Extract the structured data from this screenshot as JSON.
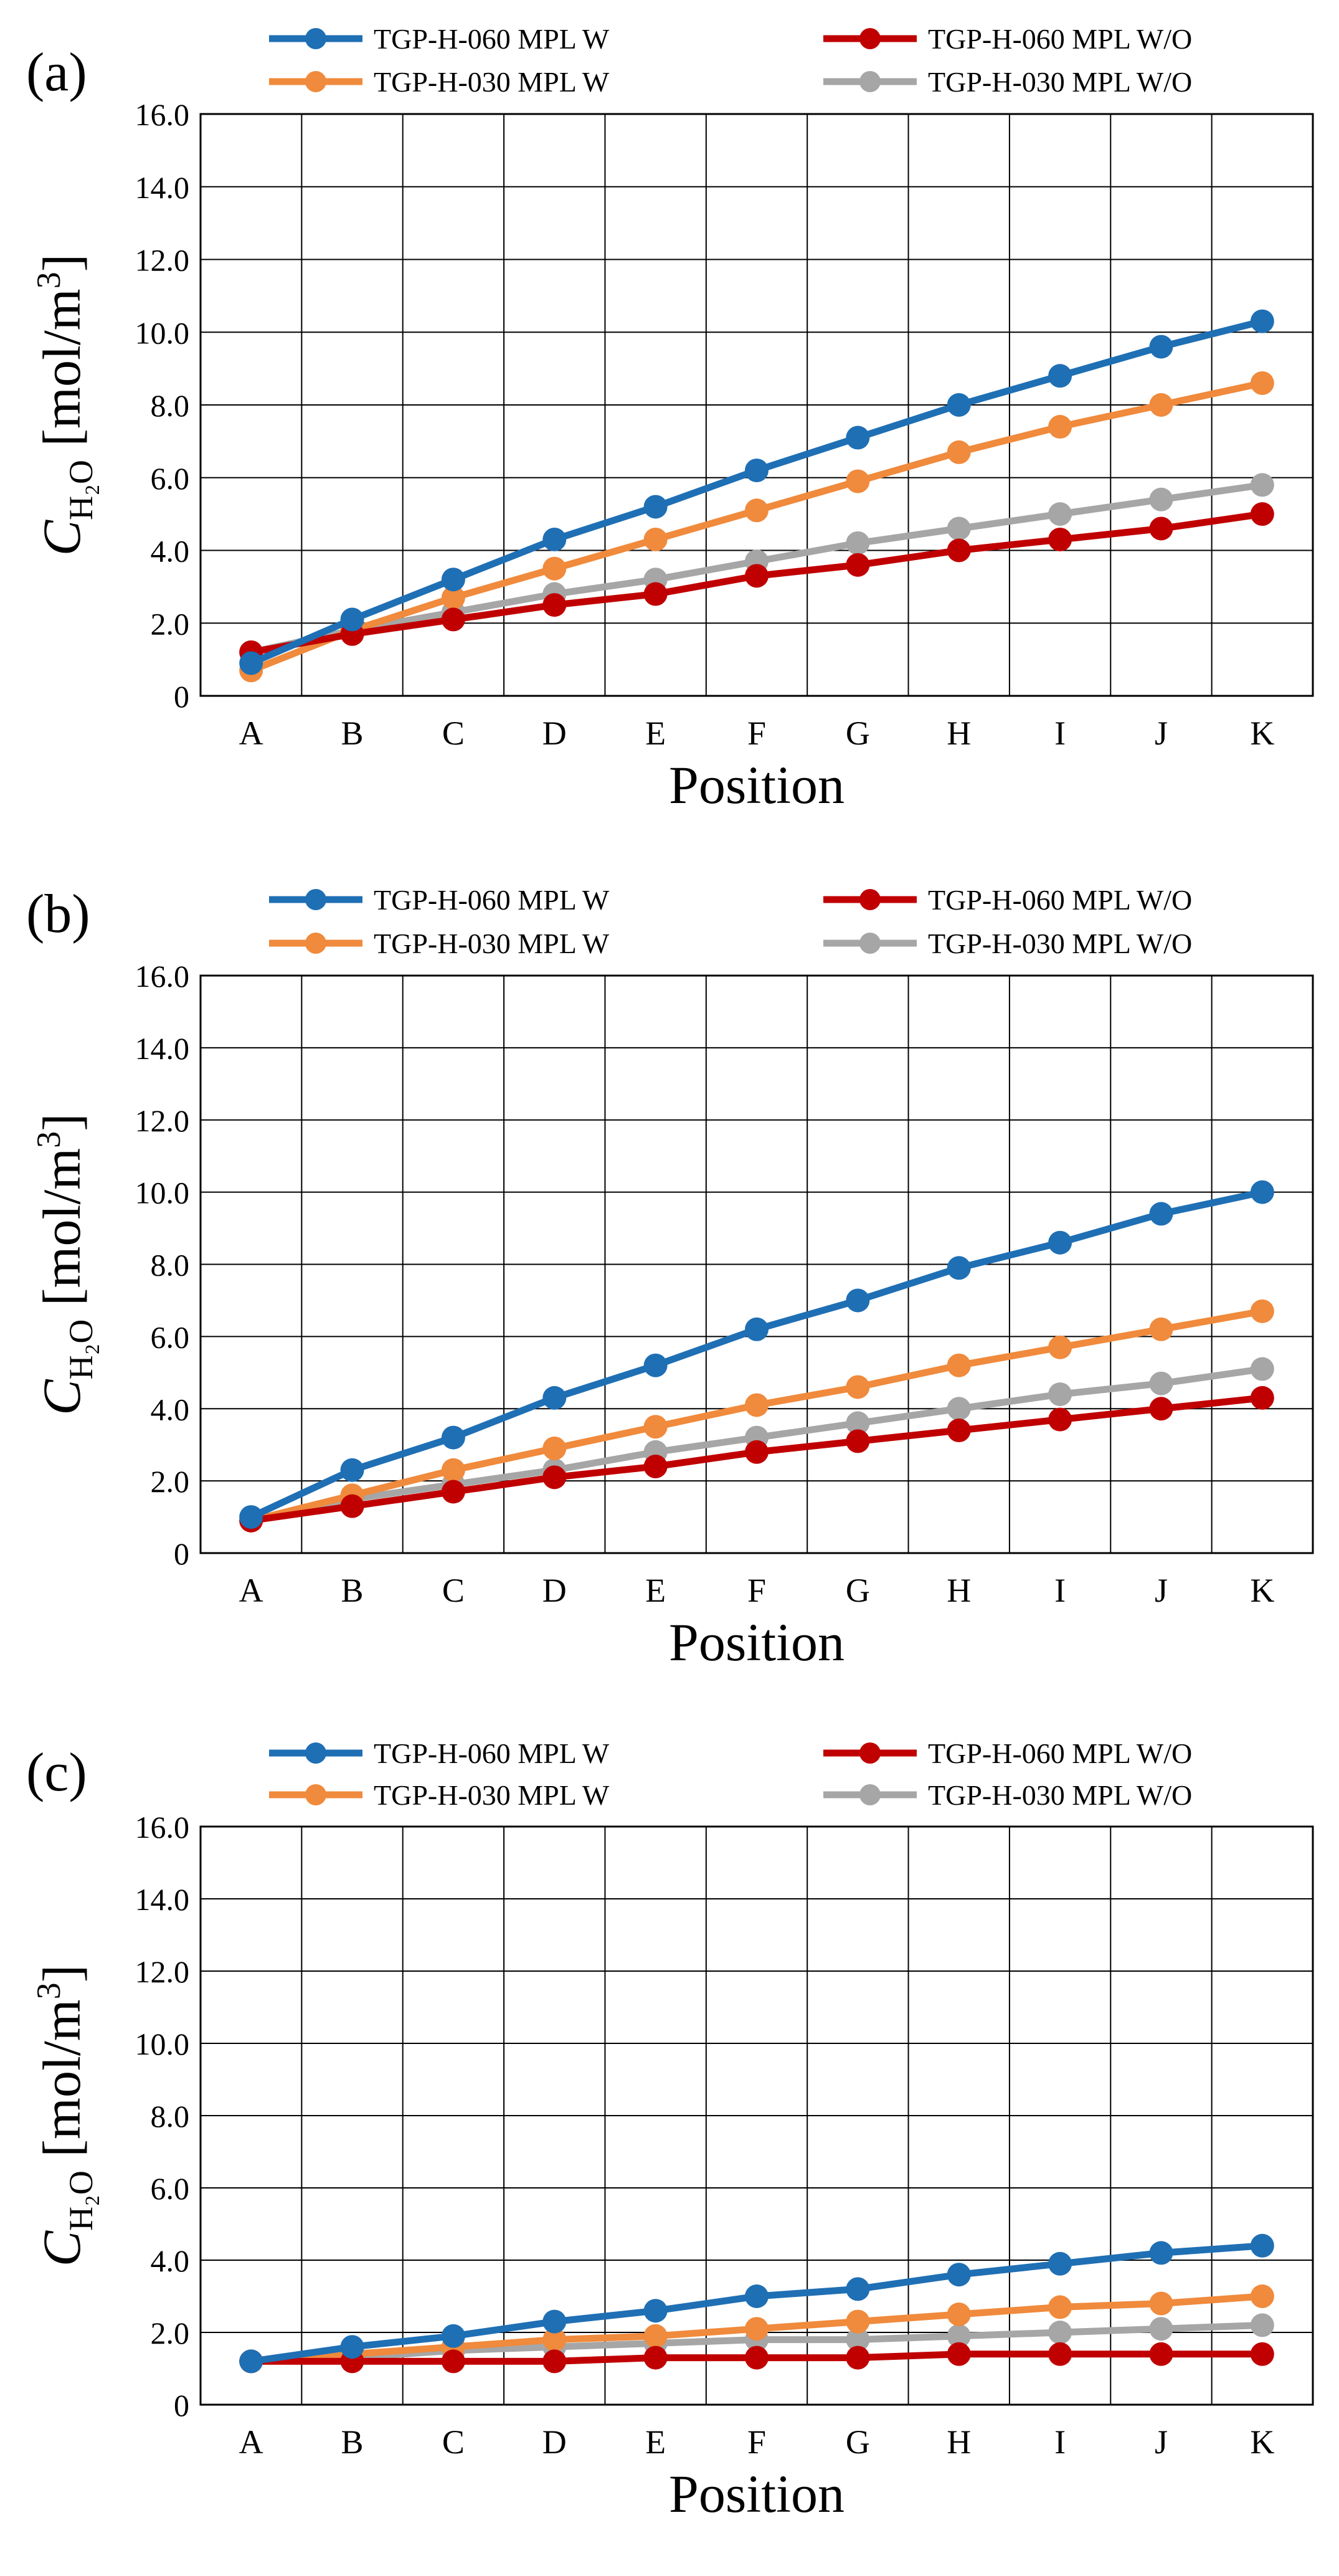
{
  "figure": {
    "position_label": "Position",
    "y_label_prefix": "C",
    "y_label_sub": "H₂O",
    "y_label_unit": " [mol/m",
    "y_label_unit_sup": "3",
    "y_label_unit_close": "]"
  },
  "chart_data": [
    {
      "type": "line",
      "panel_label": "(a)",
      "xlabel": "Position",
      "ylabel": "C_H2O [mol/m3]",
      "categories": [
        "A",
        "B",
        "C",
        "D",
        "E",
        "F",
        "G",
        "H",
        "I",
        "J",
        "K"
      ],
      "ylim": [
        0,
        16
      ],
      "yticks": [
        "0",
        "2.0",
        "4.0",
        "6.0",
        "8.0",
        "10.0",
        "12.0",
        "14.0",
        "16.0"
      ],
      "grid": true,
      "legend_position": "top",
      "series": [
        {
          "name": "TGP-H-060 MPL W",
          "color": "#1F6FB4",
          "values": [
            0.9,
            2.1,
            3.2,
            4.3,
            5.2,
            6.2,
            7.1,
            8.0,
            8.8,
            9.6,
            10.3
          ]
        },
        {
          "name": "TGP-H-060 MPL W/O",
          "color": "#C00000",
          "values": [
            1.2,
            1.7,
            2.1,
            2.5,
            2.8,
            3.3,
            3.6,
            4.0,
            4.3,
            4.6,
            5.0
          ]
        },
        {
          "name": "TGP-H-030 MPL W",
          "color": "#F08A3C",
          "values": [
            0.7,
            1.8,
            2.7,
            3.5,
            4.3,
            5.1,
            5.9,
            6.7,
            7.4,
            8.0,
            8.6
          ]
        },
        {
          "name": "TGP-H-030 MPL W/O",
          "color": "#A6A6A6",
          "values": [
            1.2,
            1.8,
            2.3,
            2.8,
            3.2,
            3.7,
            4.2,
            4.6,
            5.0,
            5.4,
            5.8
          ]
        }
      ]
    },
    {
      "type": "line",
      "panel_label": "(b)",
      "xlabel": "Position",
      "ylabel": "C_H2O [mol/m3]",
      "categories": [
        "A",
        "B",
        "C",
        "D",
        "E",
        "F",
        "G",
        "H",
        "I",
        "J",
        "K"
      ],
      "ylim": [
        0,
        16
      ],
      "yticks": [
        "0",
        "2.0",
        "4.0",
        "6.0",
        "8.0",
        "10.0",
        "12.0",
        "14.0",
        "16.0"
      ],
      "grid": true,
      "legend_position": "top",
      "series": [
        {
          "name": "TGP-H-060 MPL W",
          "color": "#1F6FB4",
          "values": [
            1.0,
            2.3,
            3.2,
            4.3,
            5.2,
            6.2,
            7.0,
            7.9,
            8.6,
            9.4,
            10.0
          ]
        },
        {
          "name": "TGP-H-060 MPL W/O",
          "color": "#C00000",
          "values": [
            0.9,
            1.3,
            1.7,
            2.1,
            2.4,
            2.8,
            3.1,
            3.4,
            3.7,
            4.0,
            4.3
          ]
        },
        {
          "name": "TGP-H-030 MPL W",
          "color": "#F08A3C",
          "values": [
            0.9,
            1.6,
            2.3,
            2.9,
            3.5,
            4.1,
            4.6,
            5.2,
            5.7,
            6.2,
            6.7
          ]
        },
        {
          "name": "TGP-H-030 MPL W/O",
          "color": "#A6A6A6",
          "values": [
            0.9,
            1.5,
            1.9,
            2.3,
            2.8,
            3.2,
            3.6,
            4.0,
            4.4,
            4.7,
            5.1
          ]
        }
      ]
    },
    {
      "type": "line",
      "panel_label": "(c)",
      "xlabel": "Position",
      "ylabel": "C_H2O [mol/m3]",
      "categories": [
        "A",
        "B",
        "C",
        "D",
        "E",
        "F",
        "G",
        "H",
        "I",
        "J",
        "K"
      ],
      "ylim": [
        0,
        16
      ],
      "yticks": [
        "0",
        "2.0",
        "4.0",
        "6.0",
        "8.0",
        "10.0",
        "12.0",
        "14.0",
        "16.0"
      ],
      "grid": true,
      "legend_position": "top",
      "series": [
        {
          "name": "TGP-H-060 MPL W",
          "color": "#1F6FB4",
          "values": [
            1.2,
            1.6,
            1.9,
            2.3,
            2.6,
            3.0,
            3.2,
            3.6,
            3.9,
            4.2,
            4.4
          ]
        },
        {
          "name": "TGP-H-060 MPL W/O",
          "color": "#C00000",
          "values": [
            1.2,
            1.2,
            1.2,
            1.2,
            1.3,
            1.3,
            1.3,
            1.4,
            1.4,
            1.4,
            1.4
          ]
        },
        {
          "name": "TGP-H-030 MPL W",
          "color": "#F08A3C",
          "values": [
            1.2,
            1.4,
            1.6,
            1.8,
            1.9,
            2.1,
            2.3,
            2.5,
            2.7,
            2.8,
            3.0
          ]
        },
        {
          "name": "TGP-H-030 MPL W/O",
          "color": "#A6A6A6",
          "values": [
            1.2,
            1.3,
            1.5,
            1.6,
            1.7,
            1.8,
            1.8,
            1.9,
            2.0,
            2.1,
            2.2
          ]
        }
      ]
    }
  ]
}
